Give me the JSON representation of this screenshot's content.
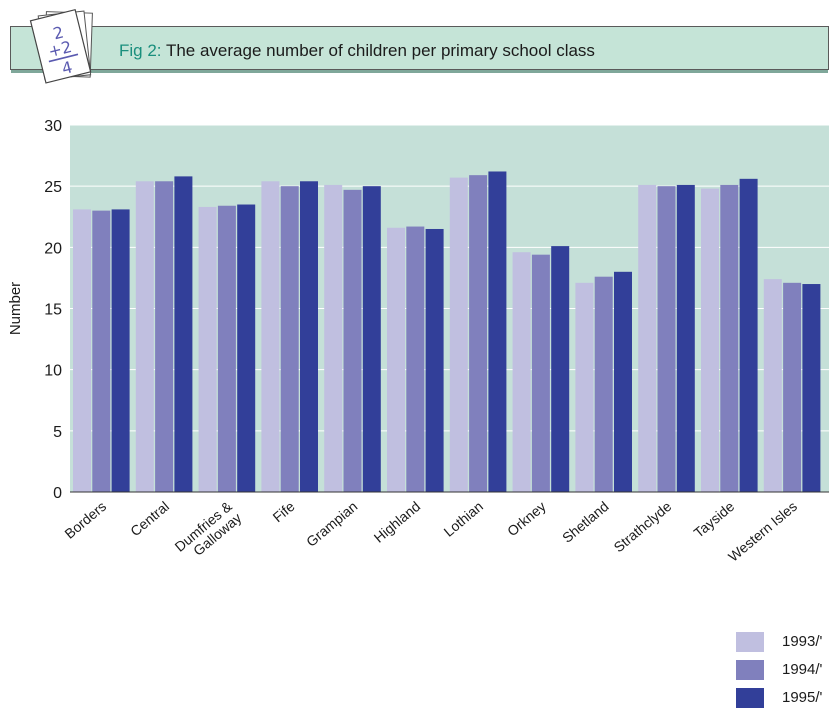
{
  "figure": {
    "label": "Fig 2:",
    "title": "The average number of children per primary school class"
  },
  "badge": {
    "icon": "math-worksheet-icon",
    "glyph_text": "2 +2 4"
  },
  "colors": {
    "plot_background": "#c5e0d8",
    "banner_background": "#c5e4d7",
    "series": [
      "#c0bfe0",
      "#8080bd",
      "#323f99"
    ]
  },
  "chart_data": {
    "type": "bar",
    "title": "The average number of children per primary school class",
    "xlabel": "",
    "ylabel": "Number",
    "ylim": [
      0,
      30
    ],
    "yticks": [
      0,
      5,
      10,
      15,
      20,
      25,
      30
    ],
    "grid": true,
    "legend_position": "bottom-right",
    "categories": [
      "Borders",
      "Central",
      "Dumfries & Galloway",
      "Fife",
      "Grampian",
      "Highland",
      "Lothian",
      "Orkney",
      "Shetland",
      "Strathclyde",
      "Tayside",
      "Western Isles"
    ],
    "category_label_lines": [
      [
        "Borders"
      ],
      [
        "Central"
      ],
      [
        "Dumfries &",
        "Galloway"
      ],
      [
        "Fife"
      ],
      [
        "Grampian"
      ],
      [
        "Highland"
      ],
      [
        "Lothian"
      ],
      [
        "Orkney"
      ],
      [
        "Shetland"
      ],
      [
        "Strathclyde"
      ],
      [
        "Tayside"
      ],
      [
        "Western Isles"
      ]
    ],
    "series": [
      {
        "name": "1993/'",
        "values": [
          23.1,
          25.4,
          23.3,
          25.4,
          25.1,
          21.6,
          25.7,
          19.6,
          17.1,
          25.1,
          24.8,
          17.4
        ]
      },
      {
        "name": "1994/'",
        "values": [
          23.0,
          25.4,
          23.4,
          25.0,
          24.7,
          21.7,
          25.9,
          19.4,
          17.6,
          25.0,
          25.1,
          17.1
        ]
      },
      {
        "name": "1995/'",
        "values": [
          23.1,
          25.8,
          23.5,
          25.4,
          25.0,
          21.5,
          26.2,
          20.1,
          18.0,
          25.1,
          25.6,
          17.0
        ]
      }
    ]
  }
}
